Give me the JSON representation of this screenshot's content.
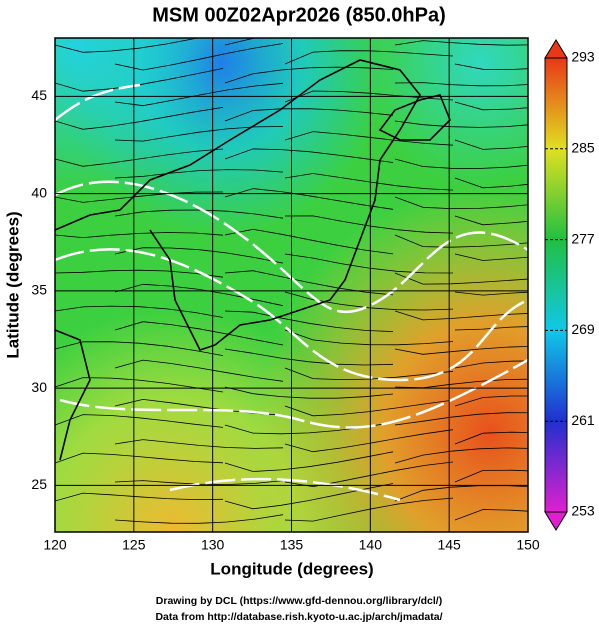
{
  "title": "MSM 00Z02Apr2026 (850.0hPa)",
  "x_axis": {
    "label": "Longitude (degrees)",
    "lim": [
      120,
      150
    ],
    "ticks": [
      120,
      125,
      130,
      135,
      140,
      145,
      150
    ]
  },
  "y_axis": {
    "label": "Latitude  (degrees)",
    "lim": [
      22.6,
      48.0
    ],
    "ticks": [
      25,
      30,
      35,
      40,
      45
    ]
  },
  "colorbar": {
    "lim": [
      253,
      293
    ],
    "ticks": [
      253,
      261,
      269,
      277,
      285,
      293
    ]
  },
  "credits": [
    "Drawing by DCL (https://www.gfd-dennou.org/library/dcl/)",
    "Data from http://database.rish.kyoto-u.ac.jp/arch/jmadata/"
  ]
}
